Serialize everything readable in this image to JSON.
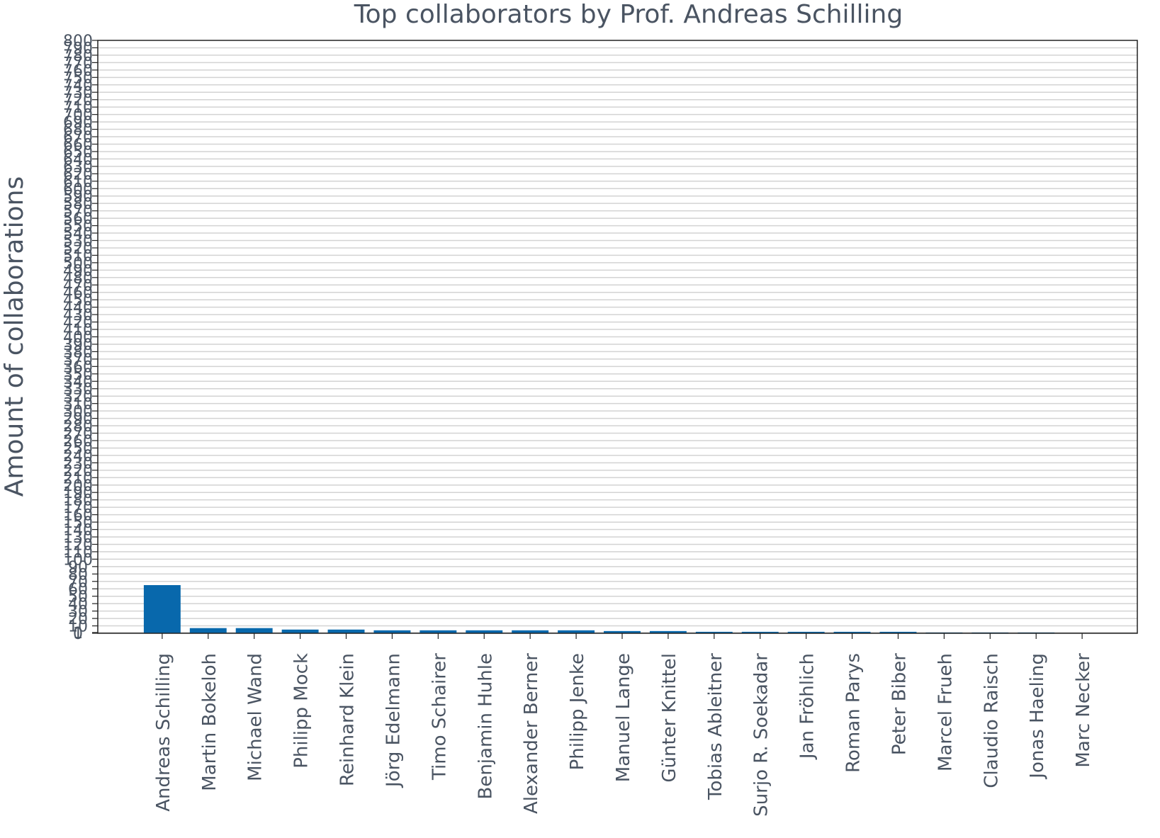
{
  "chart_data": {
    "type": "bar",
    "title": "Top collaborators by Prof. Andreas Schilling",
    "xlabel": "",
    "ylabel": "Amount of collaborations",
    "ylim": [
      0,
      800
    ],
    "categories": [
      "Andreas Schilling",
      "Martin Bokeloh",
      "Michael Wand",
      "Philipp Mock",
      "Reinhard Klein",
      "Jörg Edelmann",
      "Timo Schairer",
      "Benjamin Huhle",
      "Alexander Berner",
      "Philipp Jenke",
      "Manuel Lange",
      "Günter Knittel",
      "Tobias Ableitner",
      "Surjo R. Soekadar",
      "Jan Fröhlich",
      "Roman Parys",
      "Peter Biber",
      "Marcel Frueh",
      "Claudio Raisch",
      "Jonas Haeling",
      "Marc Necker"
    ],
    "values": [
      65,
      7,
      7,
      5,
      5,
      4,
      4,
      4,
      4,
      4,
      3,
      3,
      2,
      2,
      2,
      2,
      2,
      1,
      1,
      1,
      0
    ],
    "yticks": [
      0,
      1,
      10,
      20,
      30,
      40,
      50,
      60,
      70,
      80,
      90,
      100,
      110,
      120,
      130,
      140,
      150,
      160,
      170,
      180,
      190,
      200,
      210,
      220,
      230,
      240,
      250,
      260,
      270,
      280,
      290,
      300,
      310,
      320,
      330,
      340,
      350,
      360,
      370,
      380,
      390,
      400,
      410,
      420,
      430,
      440,
      450,
      460,
      470,
      480,
      490,
      500,
      510,
      520,
      530,
      540,
      550,
      560,
      570,
      580,
      590,
      600,
      610,
      620,
      630,
      640,
      650,
      660,
      670,
      680,
      690,
      700,
      710,
      720,
      730,
      740,
      750,
      760,
      770,
      780,
      790,
      800
    ],
    "grid": true,
    "bar_color": "#0868ac",
    "text_color": "#4a5462",
    "grid_color": "#d3d3d3"
  }
}
